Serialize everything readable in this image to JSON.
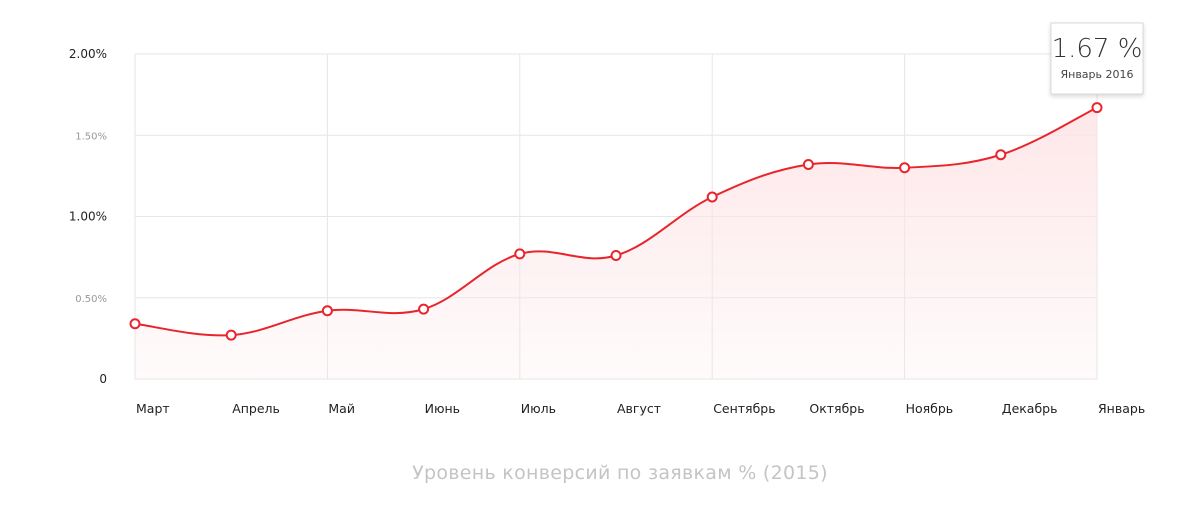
{
  "chart_data": {
    "type": "area",
    "categories": [
      "Март",
      "Апрель",
      "Май",
      "Июнь",
      "Июль",
      "Август",
      "Сентябрь",
      "Октябрь",
      "Ноябрь",
      "Декабрь",
      "Январь"
    ],
    "series": [
      {
        "values": [
          0.34,
          0.27,
          0.42,
          0.43,
          0.77,
          0.76,
          1.12,
          1.32,
          1.3,
          1.38,
          1.67
        ]
      }
    ],
    "ylim": [
      0,
      2.0
    ],
    "yticks": [
      {
        "value": 0,
        "label": "0",
        "major": true
      },
      {
        "value": 0.5,
        "label": "0.50%",
        "major": false
      },
      {
        "value": 1.0,
        "label": "1.00%",
        "major": true
      },
      {
        "value": 1.5,
        "label": "1.50%",
        "major": false
      },
      {
        "value": 2.0,
        "label": "2.00%",
        "major": true
      }
    ],
    "title": "Уровень конверсий по заявкам % (2015)",
    "grid": true,
    "line_color": "#e8252d",
    "fill_color": "#fde3e5",
    "tooltip": {
      "index": 10,
      "value": "1.67 %",
      "label": "Январь 2016"
    }
  }
}
